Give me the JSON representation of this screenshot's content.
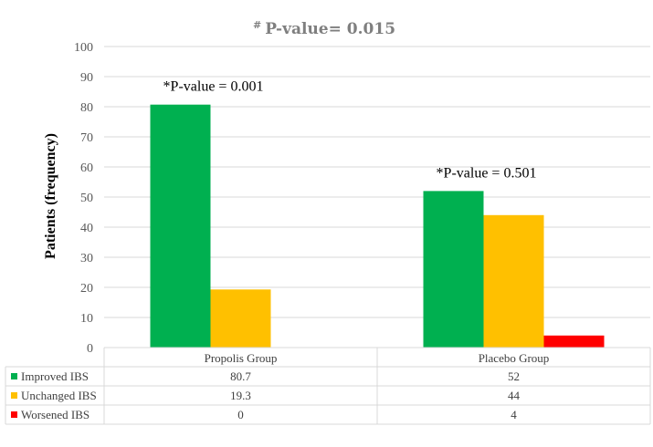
{
  "chart_data": {
    "type": "bar",
    "title": "P-value= 0.015",
    "title_mark": "#",
    "ylabel": "Patients (frequency)",
    "xlabel": "",
    "ylim": [
      0,
      100
    ],
    "yticks": [
      0,
      10,
      20,
      30,
      40,
      50,
      60,
      70,
      80,
      90,
      100
    ],
    "grid": true,
    "legend": "data-table",
    "categories": [
      "Propolis Group",
      "Placebo Group"
    ],
    "series": [
      {
        "name": "Improved IBS",
        "color": "#00b050",
        "values": [
          80.7,
          52
        ]
      },
      {
        "name": "Unchanged IBS",
        "color": "#ffc000",
        "values": [
          19.3,
          44
        ]
      },
      {
        "name": "Worsened IBS",
        "color": "#ff0000",
        "values": [
          0,
          4
        ]
      }
    ],
    "annotations": [
      {
        "text": "*P-value = 0.001",
        "category": "Propolis Group"
      },
      {
        "text": "*P-value = 0.501",
        "category": "Placebo Group"
      }
    ]
  }
}
